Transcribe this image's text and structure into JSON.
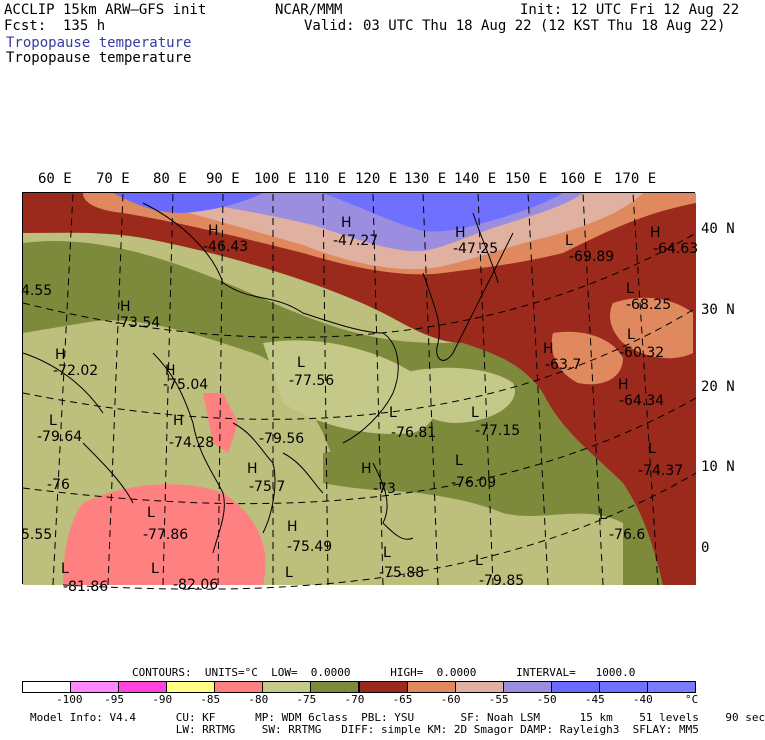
{
  "header": {
    "model": "ACCLIP 15km ARW–GFS init",
    "org": "NCAR/MMM",
    "init": "Init: 12 UTC Fri 12 Aug 22",
    "fcst": "Fcst:  135 h",
    "valid": "Valid: 03 UTC Thu 18 Aug 22 (12 KST Thu 18 Aug 22)",
    "field1": "Tropopause temperature",
    "field2": "Tropopause temperature"
  },
  "map": {
    "lon_labels": [
      "60 E",
      "70 E",
      "80 E",
      "90 E",
      "100 E",
      "110 E",
      "120 E",
      "130 E",
      "140 E",
      "150 E",
      "160 E",
      "170 E"
    ],
    "lat_labels": [
      "40 N",
      "30 N",
      "20 N",
      "10 N",
      "0"
    ],
    "centers": [
      {
        "mark": "H",
        "value": "-46.43"
      },
      {
        "mark": "H",
        "value": "-47.27"
      },
      {
        "mark": "H",
        "value": "-47.25"
      },
      {
        "mark": "L",
        "value": "-69.89"
      },
      {
        "mark": "H",
        "value": "-64.63"
      },
      {
        "mark": "",
        "value": "4.55"
      },
      {
        "mark": "H",
        "value": "-73.54"
      },
      {
        "mark": "L",
        "value": "-68.25"
      },
      {
        "mark": "H",
        "value": "-72.02"
      },
      {
        "mark": "L",
        "value": "-77.56"
      },
      {
        "mark": "H",
        "value": "-75.04"
      },
      {
        "mark": "H",
        "value": "-63.7"
      },
      {
        "mark": "L",
        "value": "-60.32"
      },
      {
        "mark": "H",
        "value": "-64.34"
      },
      {
        "mark": "L",
        "value": "-79.64"
      },
      {
        "mark": "H",
        "value": "-74.28"
      },
      {
        "mark": "",
        "value": "-79.56"
      },
      {
        "mark": "L",
        "value": "-76.81"
      },
      {
        "mark": "L",
        "value": "-77.15"
      },
      {
        "mark": "",
        "value": "-76"
      },
      {
        "mark": "H",
        "value": "-75.7"
      },
      {
        "mark": "H",
        "value": "-73"
      },
      {
        "mark": "L",
        "value": "-76.09"
      },
      {
        "mark": "L",
        "value": "-74.37"
      },
      {
        "mark": "",
        "value": "5.55"
      },
      {
        "mark": "L",
        "value": "-77.86"
      },
      {
        "mark": "H",
        "value": "-75.49"
      },
      {
        "mark": "L",
        "value": "-76.6"
      },
      {
        "mark": "L",
        "value": "-75.88"
      },
      {
        "mark": "L",
        "value": "-79.85"
      },
      {
        "mark": "L",
        "value": "-81.86"
      },
      {
        "mark": "L",
        "value": "-82.06"
      },
      {
        "mark": "L",
        "value": ""
      }
    ]
  },
  "contours_line": "CONTOURS:  UNITS=°C  LOW=  0.0000      HIGH=  0.0000      INTERVAL=   1000.0",
  "colorbar": {
    "colors": [
      "#ffffff",
      "#ff88ff",
      "#ff44dd",
      "#ffff88",
      "#ff8080",
      "#c4c98a",
      "#7d8a3c",
      "#9b2a1c",
      "#e0895e",
      "#e0b0a0",
      "#9b8ee0",
      "#6a6aff",
      "#7070ff",
      "#7a7aff"
    ],
    "labels": [
      "-100",
      "-95",
      "-90",
      "-85",
      "-80",
      "-75",
      "-70",
      "-65",
      "-60",
      "-55",
      "-50",
      "-45",
      "-40",
      "°C"
    ]
  },
  "footer": {
    "line1": "Model Info: V4.4      CU: KF      MP: WDM 6class  PBL: YSU       SF: Noah LSM      15 km    51 levels    90 sec",
    "line2": "                      LW: RRTMG    SW: RRTMG   DIFF: simple KM: 2D Smagor DAMP: Rayleigh3  SFLAY: MM5"
  }
}
